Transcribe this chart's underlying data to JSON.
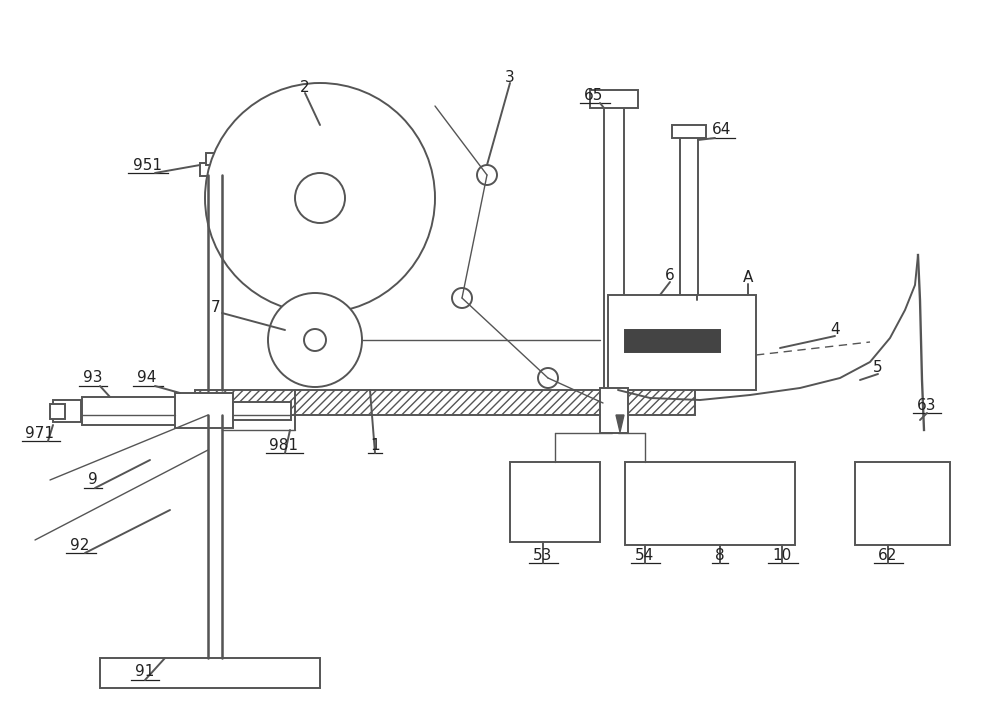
{
  "bg_color": "#ffffff",
  "line_color": "#555555",
  "lw": 1.4,
  "lw_thin": 1.0,
  "fig_width": 10.0,
  "fig_height": 7.05,
  "dpi": 100
}
